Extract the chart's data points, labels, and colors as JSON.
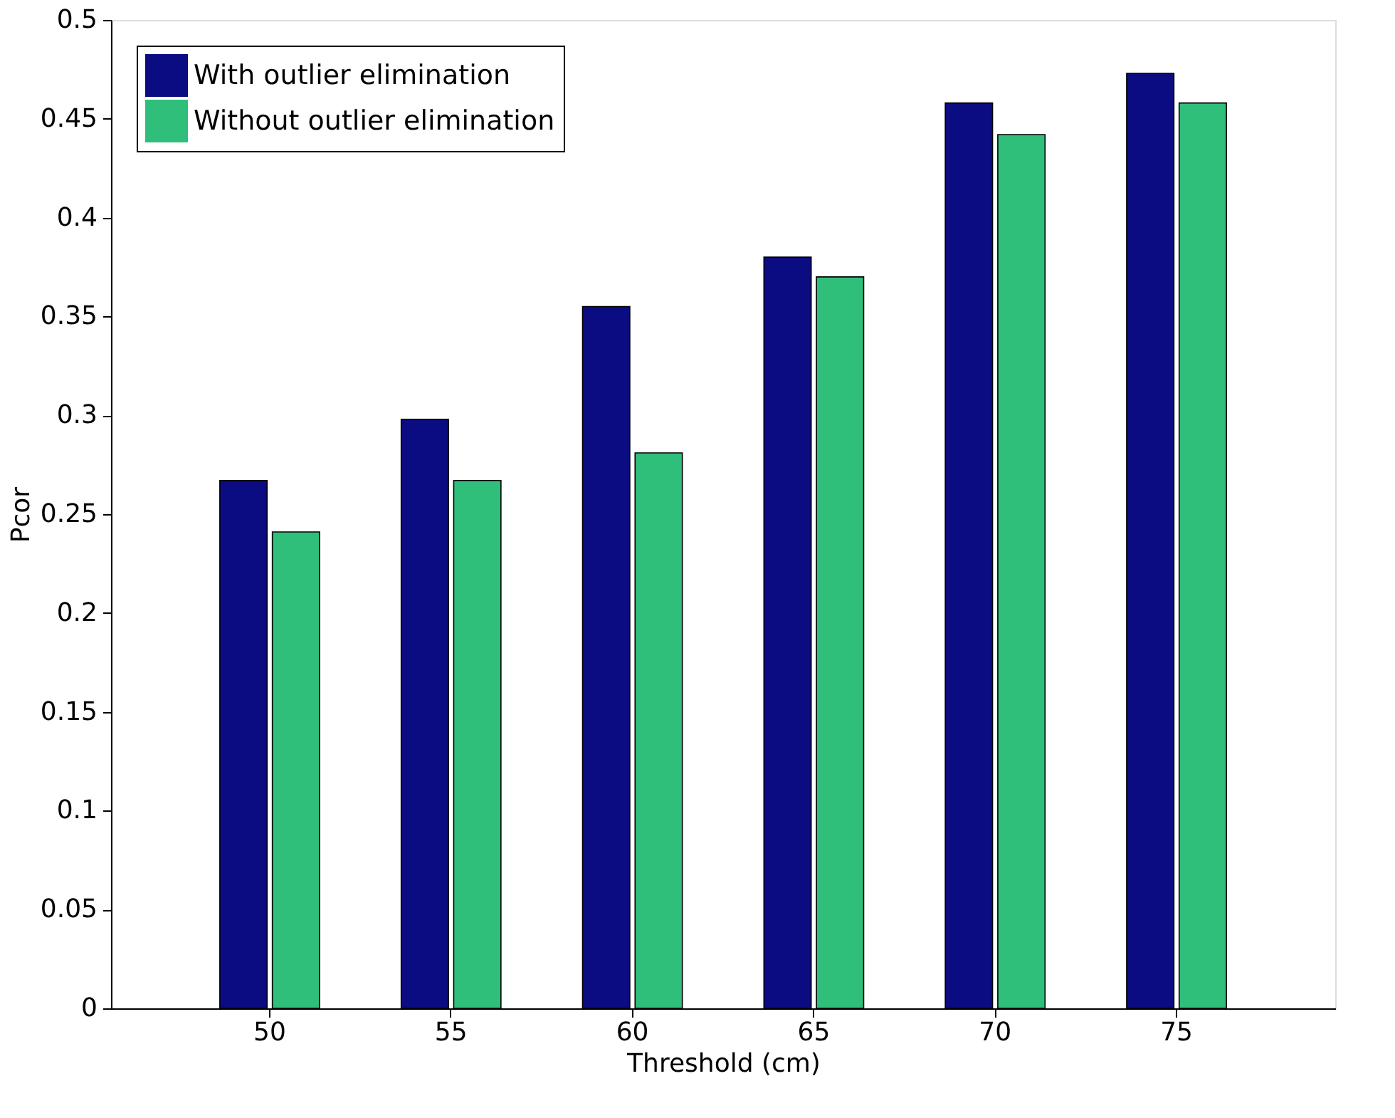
{
  "chart_data": {
    "type": "bar",
    "xlabel": "Threshold (cm)",
    "ylabel": "Pcor",
    "categories": [
      "50",
      "55",
      "60",
      "65",
      "70",
      "75"
    ],
    "series": [
      {
        "name": "With outlier elimination",
        "color": "#0b0b82",
        "values": [
          0.267,
          0.298,
          0.355,
          0.38,
          0.458,
          0.473
        ]
      },
      {
        "name": "Without outlier elimination",
        "color": "#2fbf7b",
        "values": [
          0.241,
          0.267,
          0.281,
          0.37,
          0.442,
          0.458
        ]
      }
    ],
    "ylim": [
      0,
      0.5
    ],
    "yticks": [
      0,
      0.05,
      0.1,
      0.15,
      0.2,
      0.25,
      0.3,
      0.35,
      0.4,
      0.45,
      0.5
    ],
    "grid": false,
    "legend": "top left"
  }
}
